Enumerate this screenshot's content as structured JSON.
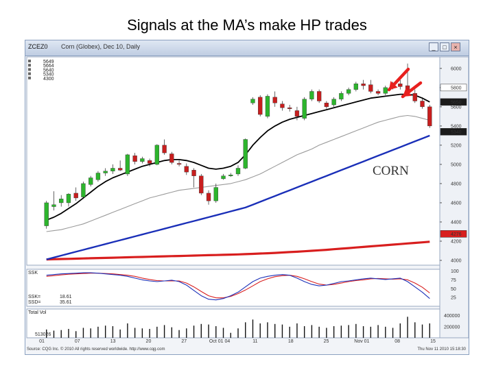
{
  "slide": {
    "title": "Signals at the MA’s make HP trades"
  },
  "window": {
    "symbol": "ZCEZ0",
    "description": "Corn (Globex), Dec 10, Daily",
    "min_label": "_",
    "restore_label": "□",
    "close_label": "×"
  },
  "ma_readout": [
    "5649",
    "5664",
    "5640",
    "5340",
    "4300"
  ],
  "annotation": "CORN",
  "footer": {
    "left": "Source: CQG Inc. © 2010 All rights reserved worldwide. http://www.cqg.com",
    "right": "Thu Nov 11 2010 15:18:30"
  },
  "stoch_panel": {
    "label": "SSK",
    "ssk_label": "SSK=",
    "ssd_label": "SSD=",
    "ssk_value": "18.61",
    "ssd_value": "35.61"
  },
  "vol_panel": {
    "label": "Total Vol",
    "value_label": "513026"
  },
  "colors": {
    "up": "#2db52d",
    "down": "#c81e1e",
    "ma_fast": "#000000",
    "ma_mid": "#9a9a9a",
    "ma_slow": "#1a2fb8",
    "ma_long": "#d81e1e",
    "ssk": "#1a2fb8",
    "ssd": "#d81e1e",
    "arrow": "#e8201e"
  },
  "chart_data": {
    "type": "candlestick",
    "price_axis": {
      "ticks": [
        4000,
        4200,
        4400,
        4600,
        4800,
        5000,
        5200,
        5400,
        5600,
        5800,
        6000
      ],
      "range": [
        3950,
        6120
      ]
    },
    "price_tags": [
      {
        "label": "5800",
        "value": 5800,
        "fill": "#ffffff"
      },
      {
        "label": "5650",
        "value": 5650,
        "fill": "#1b1b1b"
      },
      {
        "label": "5340",
        "value": 5340,
        "fill": "#1b1b1b"
      },
      {
        "label": "4276",
        "value": 4276,
        "fill": "#d81e1e"
      }
    ],
    "date_labels": [
      "01",
      "07",
      "13",
      "20",
      "27",
      "Oct 01 04",
      "11",
      "18",
      "25",
      "Nov 01",
      "08",
      "15"
    ],
    "candles": [
      {
        "o": 4360,
        "h": 4620,
        "l": 4330,
        "c": 4600
      },
      {
        "o": 4560,
        "h": 4720,
        "l": 4520,
        "c": 4580
      },
      {
        "o": 4600,
        "h": 4680,
        "l": 4560,
        "c": 4640
      },
      {
        "o": 4600,
        "h": 4700,
        "l": 4560,
        "c": 4690
      },
      {
        "o": 4700,
        "h": 4760,
        "l": 4620,
        "c": 4650
      },
      {
        "o": 4660,
        "h": 4820,
        "l": 4640,
        "c": 4800
      },
      {
        "o": 4790,
        "h": 4880,
        "l": 4770,
        "c": 4860
      },
      {
        "o": 4840,
        "h": 4930,
        "l": 4820,
        "c": 4910
      },
      {
        "o": 4910,
        "h": 4960,
        "l": 4880,
        "c": 4930
      },
      {
        "o": 4930,
        "h": 5000,
        "l": 4900,
        "c": 4960
      },
      {
        "o": 4960,
        "h": 5040,
        "l": 4930,
        "c": 4940
      },
      {
        "o": 4900,
        "h": 5110,
        "l": 4880,
        "c": 5100
      },
      {
        "o": 5090,
        "h": 5120,
        "l": 5000,
        "c": 5030
      },
      {
        "o": 5030,
        "h": 5080,
        "l": 5010,
        "c": 5060
      },
      {
        "o": 5040,
        "h": 5060,
        "l": 4980,
        "c": 5010
      },
      {
        "o": 5000,
        "h": 5210,
        "l": 4990,
        "c": 5200
      },
      {
        "o": 5200,
        "h": 5260,
        "l": 5100,
        "c": 5120
      },
      {
        "o": 5110,
        "h": 5130,
        "l": 5000,
        "c": 5020
      },
      {
        "o": 5010,
        "h": 5040,
        "l": 4980,
        "c": 5000
      },
      {
        "o": 4980,
        "h": 5010,
        "l": 4890,
        "c": 4920
      },
      {
        "o": 4940,
        "h": 4960,
        "l": 4760,
        "c": 4880
      },
      {
        "o": 4880,
        "h": 4900,
        "l": 4680,
        "c": 4700
      },
      {
        "o": 4700,
        "h": 4730,
        "l": 4580,
        "c": 4620
      },
      {
        "o": 4620,
        "h": 4800,
        "l": 4600,
        "c": 4760
      },
      {
        "o": 4850,
        "h": 4900,
        "l": 4840,
        "c": 4880
      },
      {
        "o": 4880,
        "h": 4910,
        "l": 4870,
        "c": 4890
      },
      {
        "o": 4900,
        "h": 4990,
        "l": 4880,
        "c": 4960
      },
      {
        "o": 4960,
        "h": 5270,
        "l": 4950,
        "c": 5260
      },
      {
        "o": 5640,
        "h": 5700,
        "l": 5620,
        "c": 5680
      },
      {
        "o": 5700,
        "h": 5720,
        "l": 5500,
        "c": 5520
      },
      {
        "o": 5500,
        "h": 5730,
        "l": 5480,
        "c": 5710
      },
      {
        "o": 5700,
        "h": 5760,
        "l": 5600,
        "c": 5640
      },
      {
        "o": 5630,
        "h": 5660,
        "l": 5560,
        "c": 5590
      },
      {
        "o": 5590,
        "h": 5620,
        "l": 5550,
        "c": 5580
      },
      {
        "o": 5560,
        "h": 5600,
        "l": 5460,
        "c": 5500
      },
      {
        "o": 5480,
        "h": 5700,
        "l": 5460,
        "c": 5680
      },
      {
        "o": 5680,
        "h": 5780,
        "l": 5660,
        "c": 5760
      },
      {
        "o": 5760,
        "h": 5780,
        "l": 5640,
        "c": 5660
      },
      {
        "o": 5640,
        "h": 5660,
        "l": 5580,
        "c": 5600
      },
      {
        "o": 5620,
        "h": 5700,
        "l": 5600,
        "c": 5680
      },
      {
        "o": 5680,
        "h": 5760,
        "l": 5660,
        "c": 5740
      },
      {
        "o": 5740,
        "h": 5800,
        "l": 5720,
        "c": 5780
      },
      {
        "o": 5780,
        "h": 5860,
        "l": 5760,
        "c": 5840
      },
      {
        "o": 5840,
        "h": 5880,
        "l": 5780,
        "c": 5820
      },
      {
        "o": 5830,
        "h": 5880,
        "l": 5740,
        "c": 5760
      },
      {
        "o": 5760,
        "h": 5780,
        "l": 5720,
        "c": 5740
      },
      {
        "o": 5740,
        "h": 5820,
        "l": 5720,
        "c": 5800
      },
      {
        "o": 5820,
        "h": 5860,
        "l": 5780,
        "c": 5840
      },
      {
        "o": 5840,
        "h": 5880,
        "l": 5780,
        "c": 5810
      },
      {
        "o": 5820,
        "h": 6050,
        "l": 5740,
        "c": 5760
      },
      {
        "o": 5740,
        "h": 5780,
        "l": 5640,
        "c": 5660
      },
      {
        "o": 5660,
        "h": 5700,
        "l": 5580,
        "c": 5600
      },
      {
        "o": 5600,
        "h": 5620,
        "l": 5380,
        "c": 5400
      }
    ],
    "ma_fast": [
      4420,
      4450,
      4490,
      4540,
      4590,
      4650,
      4710,
      4770,
      4820,
      4860,
      4890,
      4920,
      4950,
      4980,
      5000,
      5020,
      5040,
      5050,
      5050,
      5040,
      5020,
      4990,
      4960,
      4950,
      4960,
      4980,
      5020,
      5100,
      5200,
      5280,
      5350,
      5400,
      5440,
      5470,
      5490,
      5510,
      5530,
      5550,
      5570,
      5590,
      5610,
      5630,
      5650,
      5670,
      5690,
      5700,
      5710,
      5720,
      5730,
      5730,
      5720,
      5690,
      5650
    ],
    "ma_mid": [
      4300,
      4310,
      4320,
      4340,
      4360,
      4380,
      4410,
      4440,
      4470,
      4500,
      4530,
      4560,
      4590,
      4620,
      4650,
      4670,
      4690,
      4710,
      4730,
      4740,
      4750,
      4760,
      4770,
      4780,
      4790,
      4800,
      4820,
      4840,
      4870,
      4900,
      4940,
      4980,
      5020,
      5060,
      5100,
      5130,
      5160,
      5200,
      5230,
      5260,
      5290,
      5320,
      5350,
      5380,
      5410,
      5440,
      5460,
      5480,
      5500,
      5510,
      5500,
      5480,
      5460
    ],
    "ma_slow": [
      4010,
      4030,
      4050,
      4070,
      4090,
      4110,
      4130,
      4150,
      4170,
      4190,
      4210,
      4230,
      4250,
      4270,
      4290,
      4310,
      4330,
      4350,
      4370,
      4390,
      4410,
      4430,
      4450,
      4470,
      4490,
      4510,
      4530,
      4550,
      4580,
      4610,
      4640,
      4670,
      4700,
      4730,
      4760,
      4790,
      4820,
      4850,
      4880,
      4910,
      4940,
      4970,
      5000,
      5030,
      5060,
      5090,
      5120,
      5150,
      5180,
      5210,
      5240,
      5270,
      5300
    ],
    "ma_long": [
      4010,
      4012,
      4014,
      4016,
      4018,
      4020,
      4022,
      4024,
      4026,
      4028,
      4030,
      4032,
      4034,
      4036,
      4038,
      4040,
      4042,
      4044,
      4046,
      4048,
      4050,
      4052,
      4054,
      4056,
      4058,
      4060,
      4062,
      4065,
      4068,
      4071,
      4074,
      4078,
      4082,
      4086,
      4090,
      4095,
      4100,
      4105,
      4110,
      4116,
      4122,
      4128,
      4134,
      4140,
      4146,
      4152,
      4158,
      4164,
      4170,
      4176,
      4182,
      4188,
      4194
    ],
    "stoch_axis": {
      "ticks": [
        25,
        50,
        75,
        100
      ],
      "range": [
        0,
        105
      ]
    },
    "ssk": [
      88,
      90,
      92,
      93,
      94,
      95,
      95,
      94,
      92,
      90,
      88,
      85,
      80,
      75,
      72,
      70,
      72,
      74,
      70,
      60,
      45,
      30,
      20,
      18,
      22,
      30,
      40,
      55,
      70,
      80,
      85,
      88,
      90,
      88,
      80,
      70,
      62,
      58,
      60,
      65,
      70,
      72,
      75,
      78,
      80,
      78,
      76,
      78,
      80,
      70,
      55,
      40,
      22
    ],
    "ssd": [
      85,
      87,
      89,
      91,
      92,
      93,
      94,
      94,
      93,
      92,
      90,
      88,
      85,
      80,
      76,
      73,
      72,
      72,
      72,
      66,
      55,
      42,
      30,
      24,
      24,
      28,
      36,
      46,
      58,
      70,
      78,
      84,
      87,
      88,
      85,
      78,
      70,
      63,
      60,
      62,
      66,
      70,
      73,
      75,
      78,
      79,
      78,
      77,
      78,
      75,
      66,
      54,
      38
    ],
    "vol_axis": {
      "ticks": [
        200000,
        400000
      ],
      "range": [
        0,
        520000
      ]
    },
    "volume": [
      150000,
      130000,
      140000,
      160000,
      120000,
      180000,
      170000,
      200000,
      220000,
      210000,
      150000,
      260000,
      180000,
      170000,
      160000,
      200000,
      230000,
      190000,
      140000,
      170000,
      220000,
      250000,
      240000,
      210000,
      180000,
      90000,
      170000,
      280000,
      330000,
      260000,
      280000,
      250000,
      240000,
      200000,
      260000,
      210000,
      230000,
      200000,
      180000,
      210000,
      220000,
      230000,
      250000,
      210000,
      200000,
      230000,
      200000,
      180000,
      260000,
      380000,
      280000,
      240000,
      260000
    ]
  }
}
